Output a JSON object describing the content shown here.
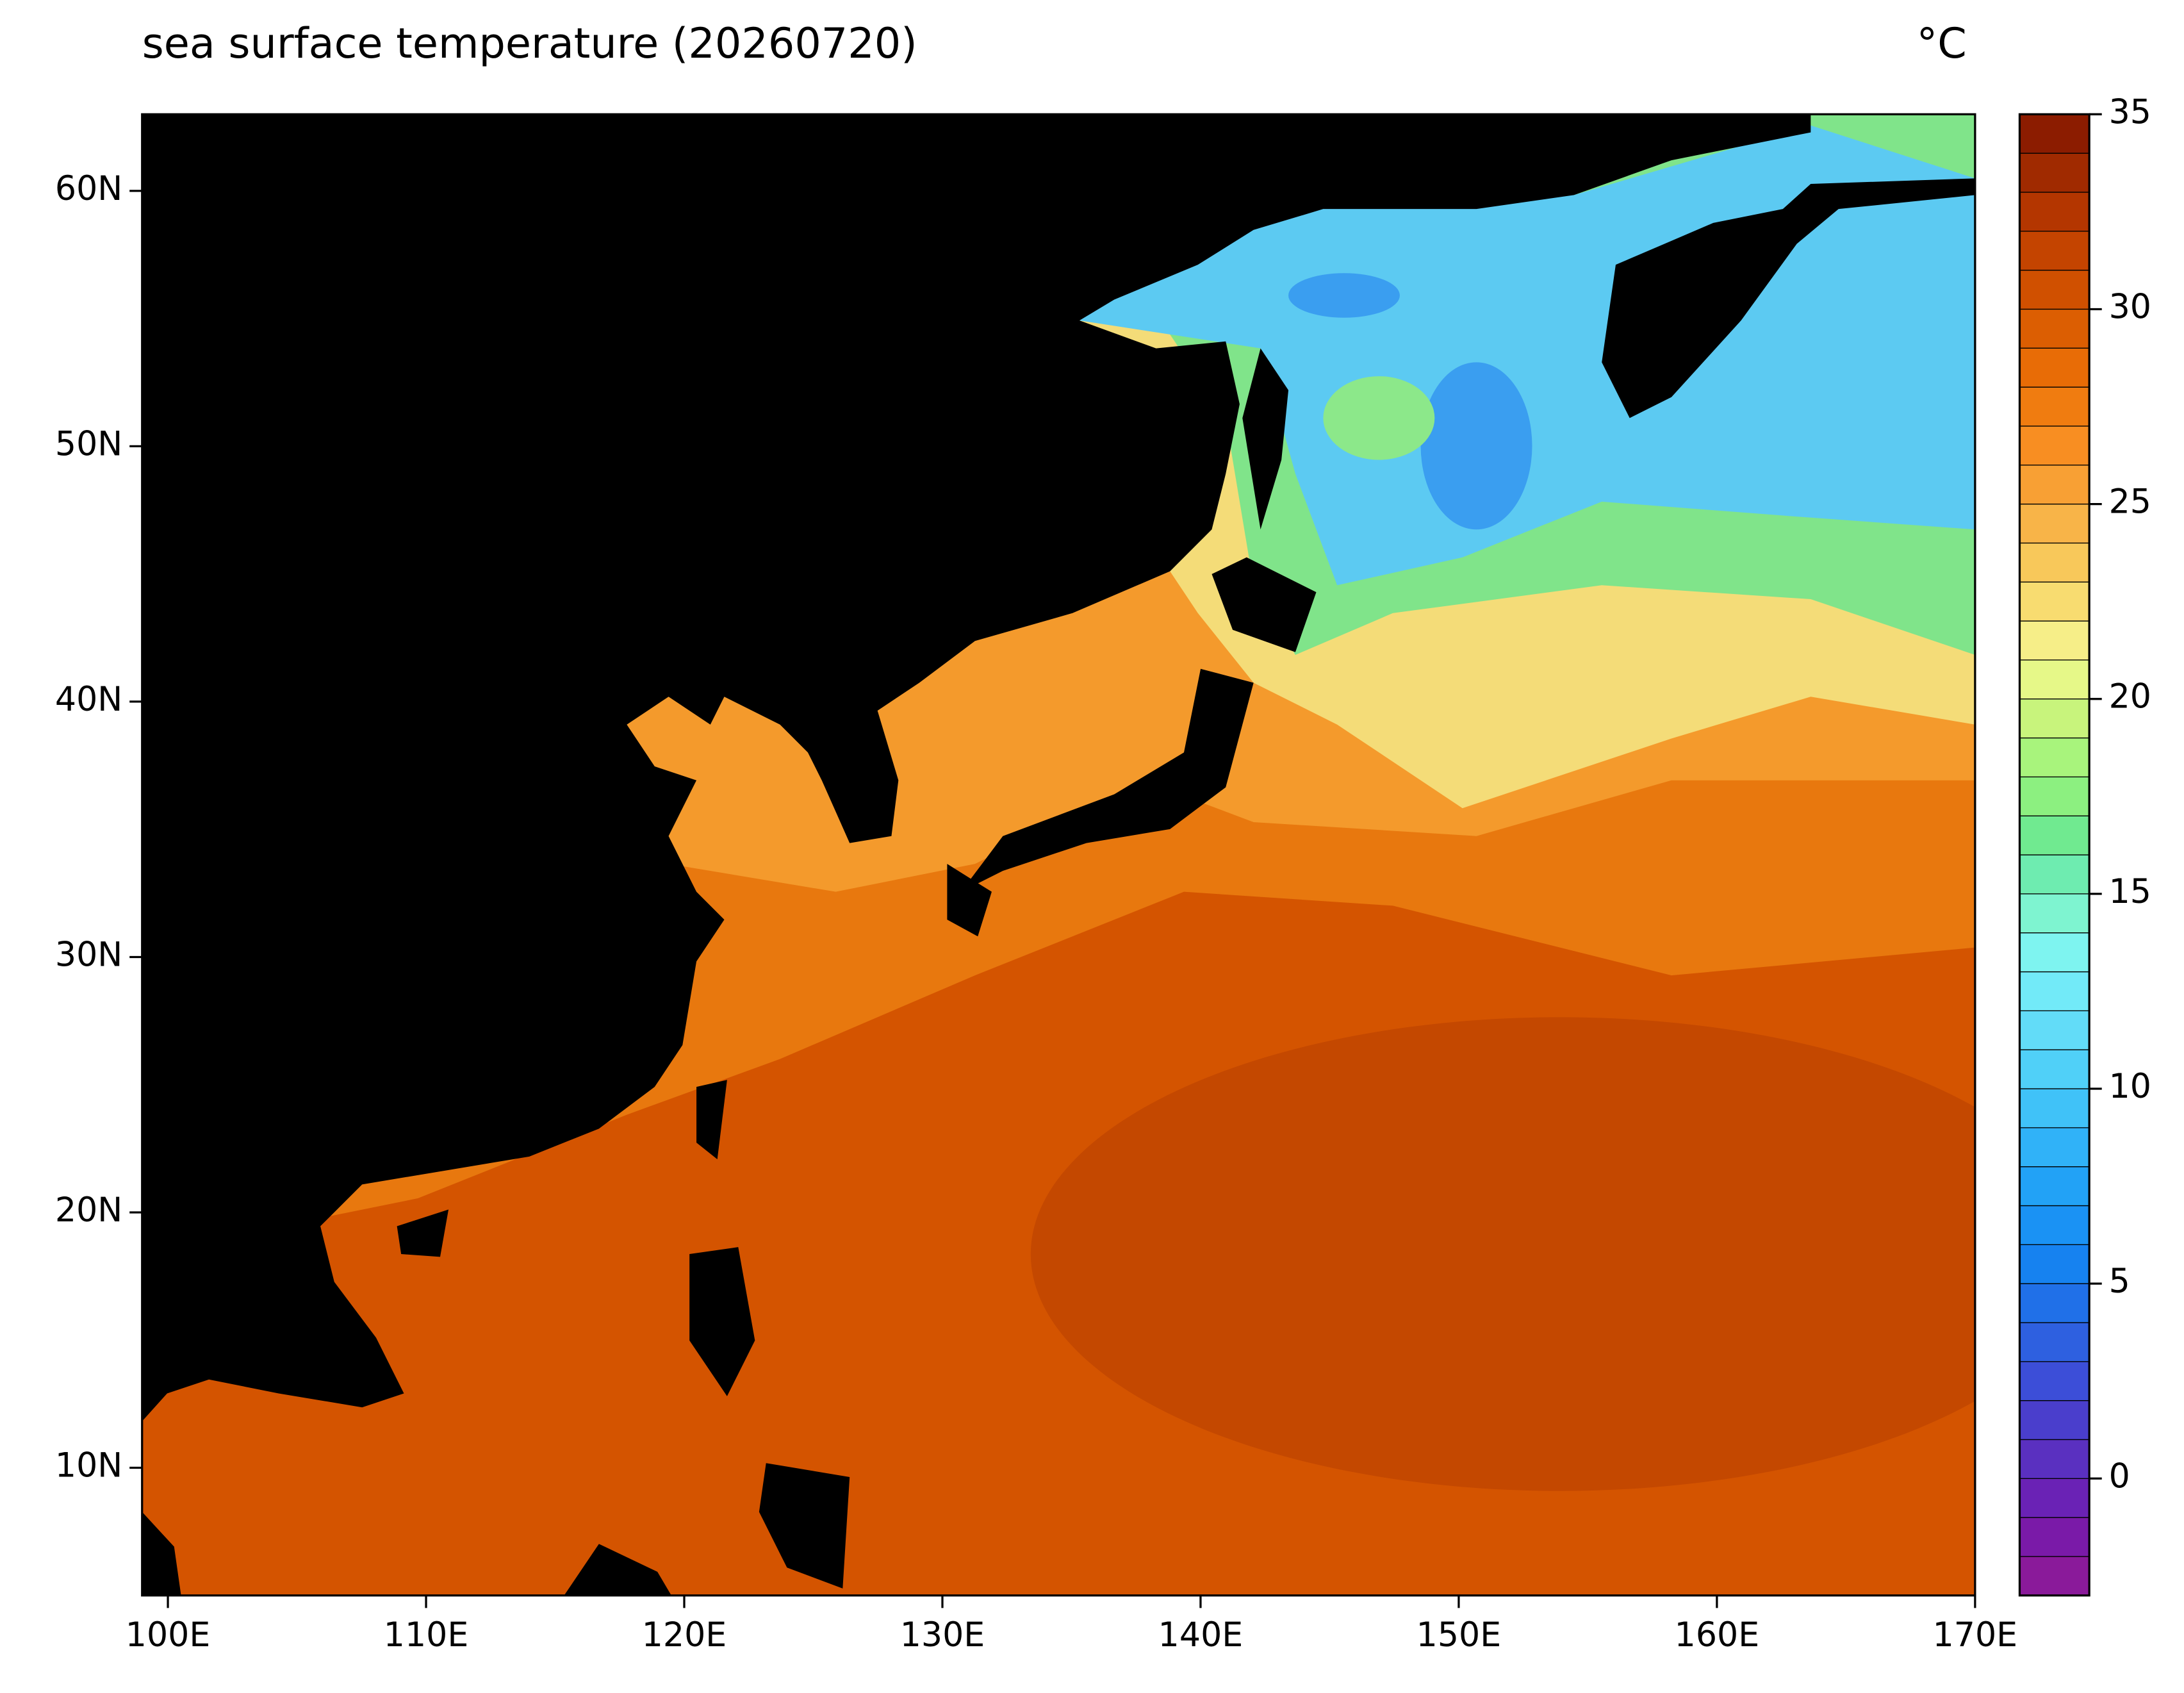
{
  "map": {
    "title": "sea surface temperature (20260720)",
    "unit": "°C",
    "xlim": [
      99,
      170
    ],
    "ylim": [
      5,
      63
    ],
    "xticks": [
      {
        "value": 100,
        "label": "100E"
      },
      {
        "value": 110,
        "label": "110E"
      },
      {
        "value": 120,
        "label": "120E"
      },
      {
        "value": 130,
        "label": "130E"
      },
      {
        "value": 140,
        "label": "140E"
      },
      {
        "value": 150,
        "label": "150E"
      },
      {
        "value": 160,
        "label": "160E"
      },
      {
        "value": 170,
        "label": "170E"
      }
    ],
    "yticks": [
      {
        "value": 10,
        "label": "10N"
      },
      {
        "value": 20,
        "label": "20N"
      },
      {
        "value": 30,
        "label": "30N"
      },
      {
        "value": 40,
        "label": "40N"
      },
      {
        "value": 50,
        "label": "50N"
      },
      {
        "value": 60,
        "label": "60N"
      }
    ],
    "colorbar": {
      "range": [
        -3,
        35
      ],
      "ticks": [
        0,
        5,
        10,
        15,
        20,
        25,
        30,
        35
      ],
      "colors": [
        "#8a1a9a",
        "#7a1aa8",
        "#6a22b5",
        "#5a30c0",
        "#4a3ecc",
        "#3c4ed8",
        "#2e60e0",
        "#2070e8",
        "#1682f0",
        "#1a92f4",
        "#22a2f6",
        "#30b2f8",
        "#40c2f8",
        "#50d0f8",
        "#62dcf8",
        "#72eaf8",
        "#7ef4f0",
        "#7ef4d0",
        "#6eecb0",
        "#70ea90",
        "#8cf080",
        "#a8f47c",
        "#c8f47c",
        "#e6f888",
        "#f6ee88",
        "#f8dc70",
        "#f8c85a",
        "#f8b448",
        "#f8a034",
        "#f88e22",
        "#f07c10",
        "#e86c06",
        "#dc5e02",
        "#d05000",
        "#c44400",
        "#b43600",
        "#a02a00",
        "#8c1c00"
      ]
    }
  }
}
